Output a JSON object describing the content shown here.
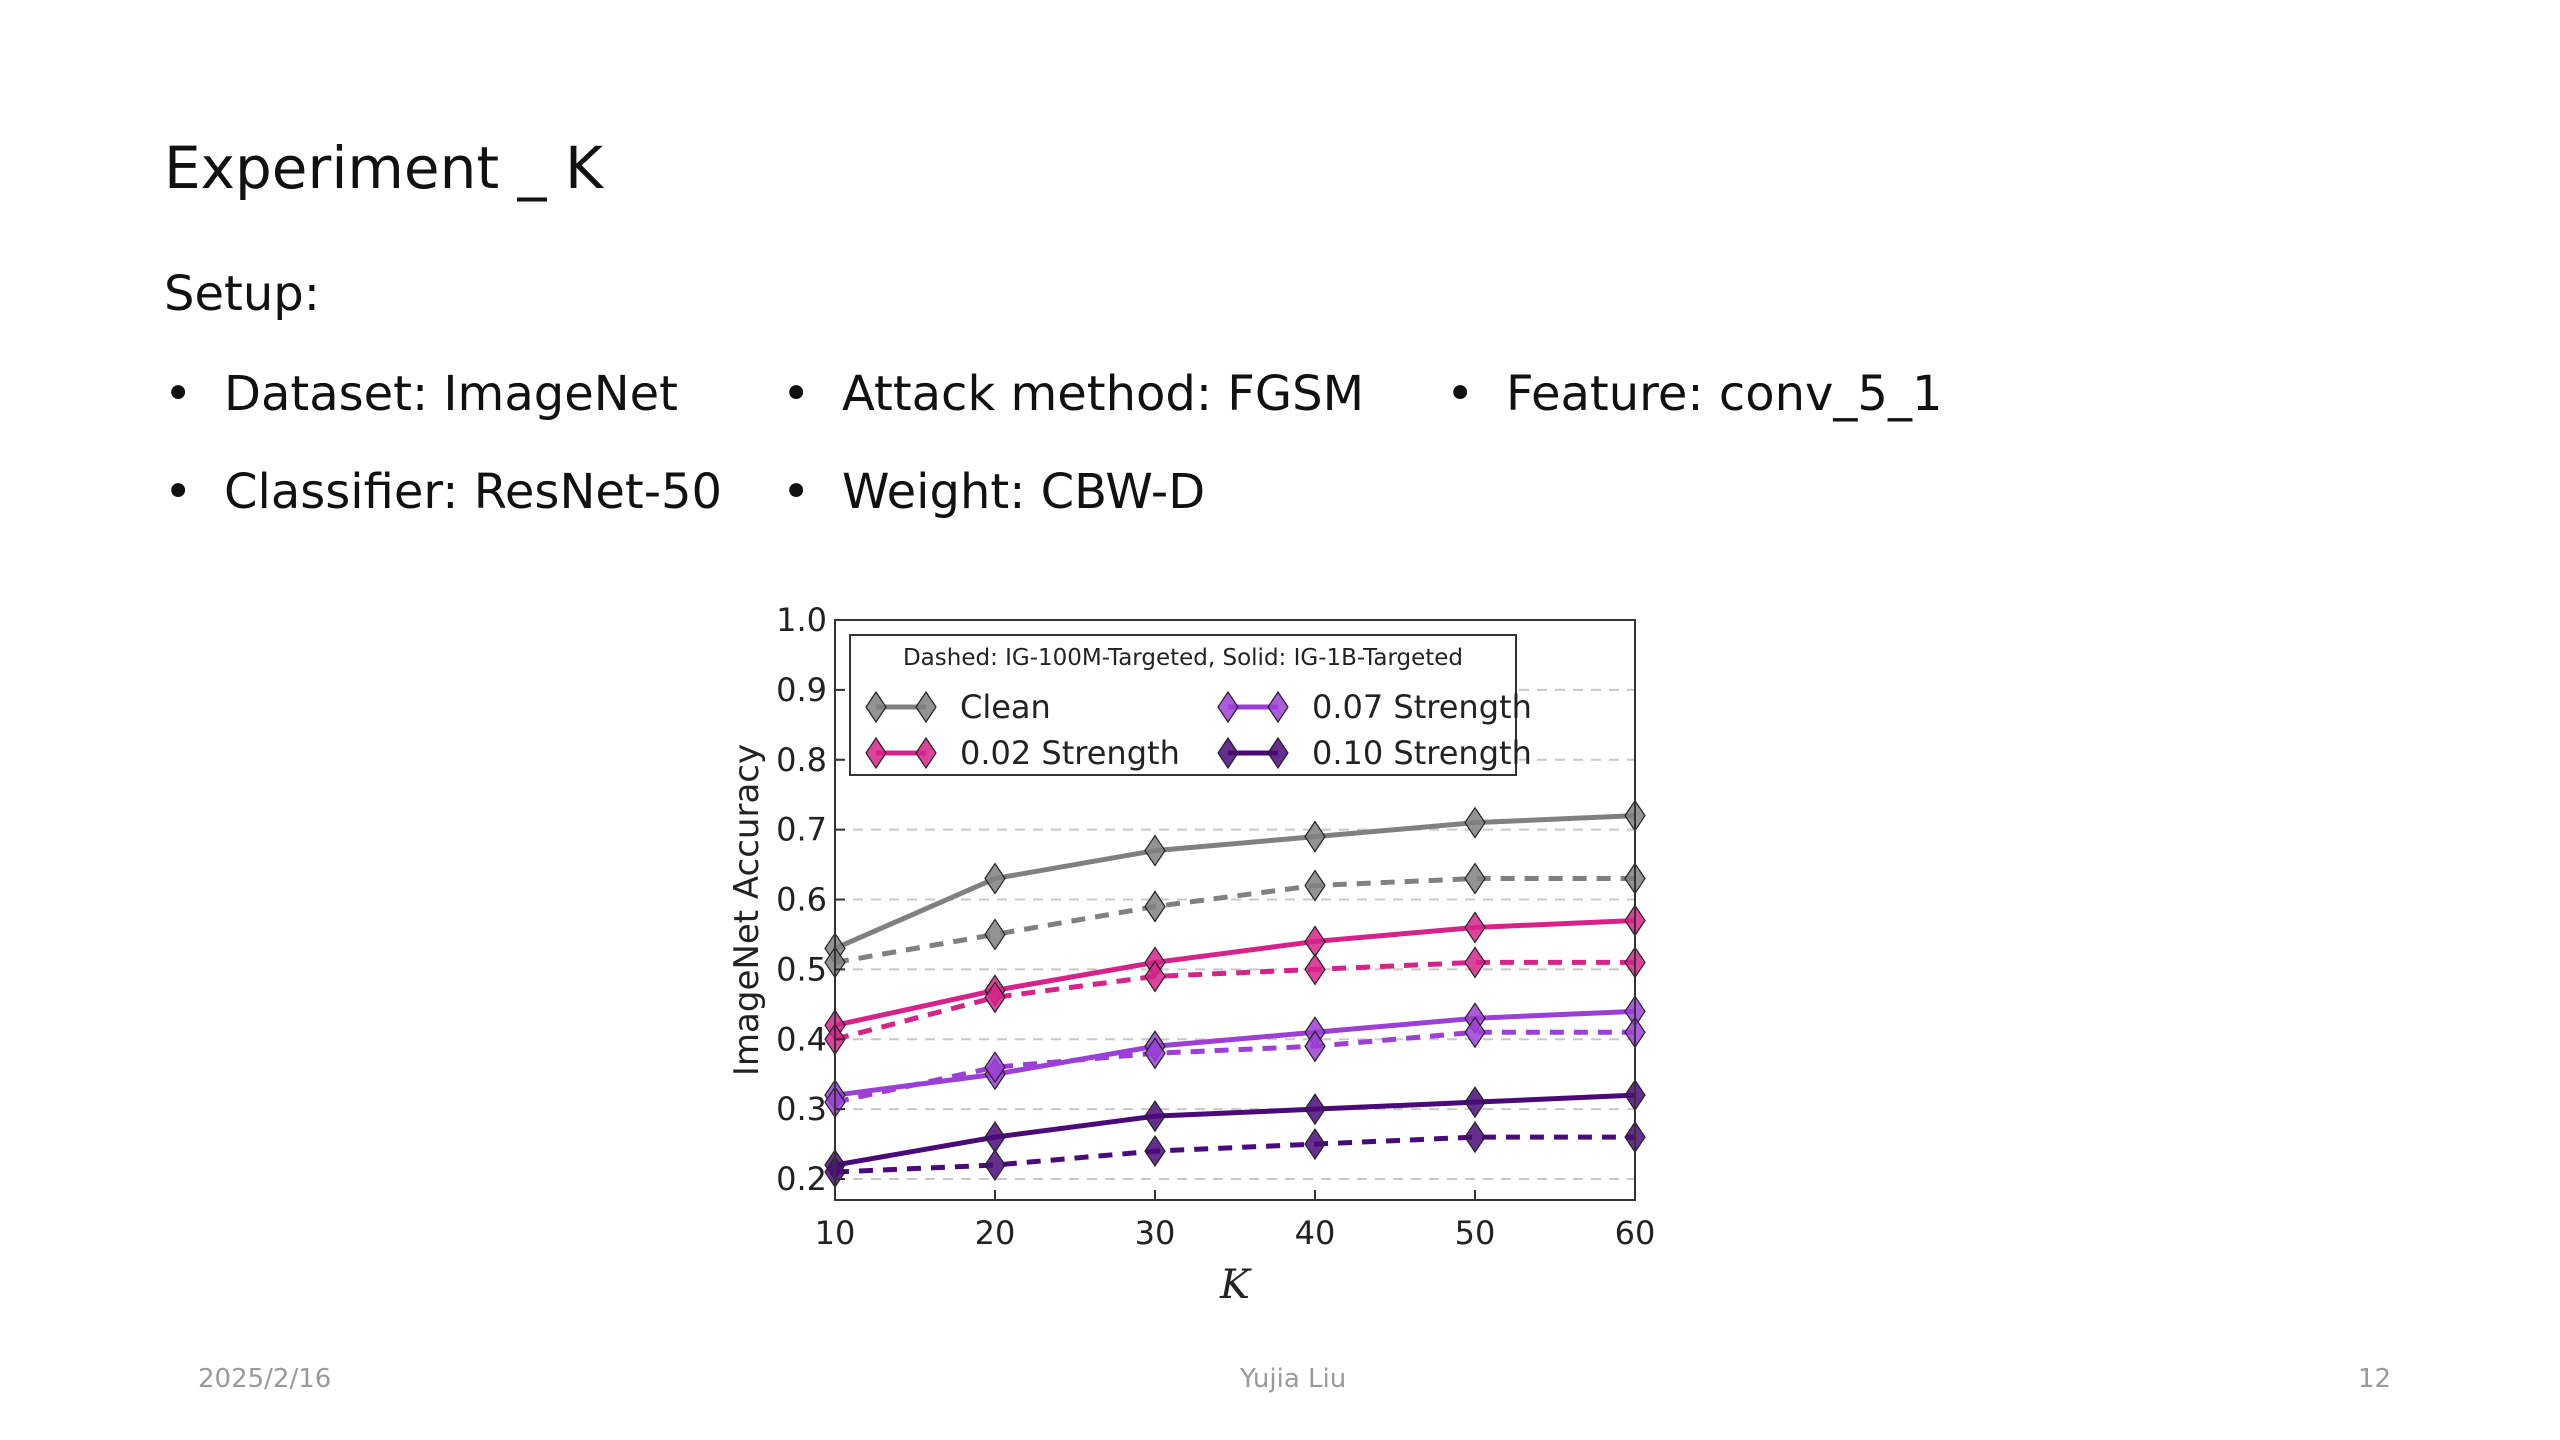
{
  "slide": {
    "title": "Experiment _ K",
    "setup_label": "Setup:",
    "bullet_symbol": "•",
    "bullets": [
      "Dataset: ImageNet",
      "Attack method: FGSM",
      "Feature: conv_5_1",
      "Classifier: ResNet-50",
      "Weight:  CBW-D"
    ],
    "footer": {
      "date": "2025/2/16",
      "author": "Yujia Liu",
      "page": "12"
    }
  },
  "chart_data": {
    "type": "line",
    "x": [
      10,
      20,
      30,
      40,
      50,
      60
    ],
    "xlabel": "K",
    "ylabel": "ImageNet Accuracy",
    "xlim": [
      10,
      60
    ],
    "ylim": [
      0.17,
      1.0
    ],
    "yticks": [
      0.2,
      0.3,
      0.4,
      0.5,
      0.6,
      0.7,
      0.8,
      0.9,
      1.0
    ],
    "ytick_labels": [
      "0.2",
      "0.3",
      "0.4",
      "0.5",
      "0.6",
      "0.7",
      "0.8",
      "0.9",
      "1.0"
    ],
    "xticks": [
      10,
      20,
      30,
      40,
      50,
      60
    ],
    "xtick_labels": [
      "10",
      "20",
      "30",
      "40",
      "50",
      "60"
    ],
    "grid": "horizontal dashed",
    "legend_title": "Dashed: IG-100M-Targeted, Solid: IG-1B-Targeted",
    "legend_position": "top-left",
    "marker": "diamond",
    "series": [
      {
        "name": "Clean",
        "color": "#808080",
        "style": "solid",
        "values": [
          0.53,
          0.63,
          0.67,
          0.69,
          0.71,
          0.72
        ]
      },
      {
        "name": "Clean",
        "color": "#808080",
        "style": "dashed",
        "values": [
          0.51,
          0.55,
          0.59,
          0.62,
          0.63,
          0.63
        ]
      },
      {
        "name": "0.02 Strength",
        "color": "#d6238a",
        "style": "solid",
        "values": [
          0.42,
          0.47,
          0.51,
          0.54,
          0.56,
          0.57
        ]
      },
      {
        "name": "0.02 Strength",
        "color": "#d6238a",
        "style": "dashed",
        "values": [
          0.4,
          0.46,
          0.49,
          0.5,
          0.51,
          0.51
        ]
      },
      {
        "name": "0.07 Strength",
        "color": "#9b3fd6",
        "style": "solid",
        "values": [
          0.32,
          0.35,
          0.39,
          0.41,
          0.43,
          0.44
        ]
      },
      {
        "name": "0.07 Strength",
        "color": "#9b3fd6",
        "style": "dashed",
        "values": [
          0.31,
          0.36,
          0.38,
          0.39,
          0.41,
          0.41
        ]
      },
      {
        "name": "0.10 Strength",
        "color": "#4b0a7a",
        "style": "solid",
        "values": [
          0.22,
          0.26,
          0.29,
          0.3,
          0.31,
          0.32
        ]
      },
      {
        "name": "0.10 Strength",
        "color": "#4b0a7a",
        "style": "dashed",
        "values": [
          0.21,
          0.22,
          0.24,
          0.25,
          0.26,
          0.26
        ]
      }
    ],
    "legend_entries": [
      {
        "name": "Clean",
        "color": "#808080"
      },
      {
        "name": "0.02 Strength",
        "color": "#d6238a"
      },
      {
        "name": "0.07 Strength",
        "color": "#9b3fd6"
      },
      {
        "name": "0.10 Strength",
        "color": "#4b0a7a"
      }
    ]
  }
}
